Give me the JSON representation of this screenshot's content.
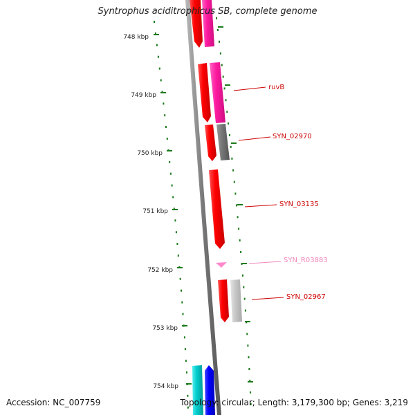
{
  "title": "Syntrophus aciditrophicus SB, complete genome",
  "footer": {
    "accession": "Accession: NC_007759",
    "summary": "Topology: circular; Length: 3,179,300 bp; Genes: 3,219"
  },
  "ticks": [
    {
      "label": "748 kbp",
      "kbp": 748
    },
    {
      "label": "749 kbp",
      "kbp": 749
    },
    {
      "label": "750 kbp",
      "kbp": 750
    },
    {
      "label": "751 kbp",
      "kbp": 751
    },
    {
      "label": "752 kbp",
      "kbp": 752
    },
    {
      "label": "753 kbp",
      "kbp": 753
    },
    {
      "label": "754 kbp",
      "kbp": 754
    }
  ],
  "gene_labels": [
    {
      "name": "ruvB",
      "color": "#cc0000"
    },
    {
      "name": "SYN_02970",
      "color": "#cc0000"
    },
    {
      "name": "SYN_03135",
      "color": "#cc0000"
    },
    {
      "name": "SYN_R03883",
      "color": "#ee88bb"
    },
    {
      "name": "SYN_02967",
      "color": "#cc0000"
    }
  ],
  "colors": {
    "backbone": "#777777",
    "tick": "#1a7a1a",
    "cds": "#ff0000",
    "gene_magenta": "#ff1aa0",
    "gene_gray": "#777777",
    "gene_lightgray": "#c8c8c8",
    "rna": "#ff88cc",
    "gene_cyan": "#00cccc",
    "gene_blue": "#0000ff"
  }
}
